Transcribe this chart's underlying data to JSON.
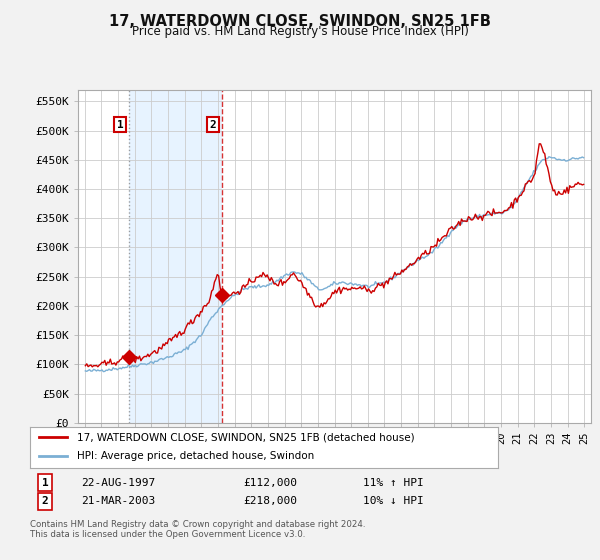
{
  "title": "17, WATERDOWN CLOSE, SWINDON, SN25 1FB",
  "subtitle": "Price paid vs. HM Land Registry's House Price Index (HPI)",
  "ylim": [
    0,
    570000
  ],
  "yticks": [
    0,
    50000,
    100000,
    150000,
    200000,
    250000,
    300000,
    350000,
    400000,
    450000,
    500000,
    550000
  ],
  "ytick_labels": [
    "£0",
    "£50K",
    "£100K",
    "£150K",
    "£200K",
    "£250K",
    "£300K",
    "£350K",
    "£400K",
    "£450K",
    "£500K",
    "£550K"
  ],
  "hpi_color": "#7bafd4",
  "price_color": "#cc0000",
  "vline1_color": "#888888",
  "vline2_color": "#cc0000",
  "shade_color": "#ddeeff",
  "legend_label_price": "17, WATERDOWN CLOSE, SWINDON, SN25 1FB (detached house)",
  "legend_label_hpi": "HPI: Average price, detached house, Swindon",
  "sale1_date": "22-AUG-1997",
  "sale1_price": "£112,000",
  "sale1_hpi": "11% ↑ HPI",
  "sale2_date": "21-MAR-2003",
  "sale2_price": "£218,000",
  "sale2_hpi": "10% ↓ HPI",
  "sale1_year": 1997.64,
  "sale1_value": 112000,
  "sale2_year": 2003.22,
  "sale2_value": 218000,
  "footer": "Contains HM Land Registry data © Crown copyright and database right 2024.\nThis data is licensed under the Open Government Licence v3.0.",
  "background_color": "#f2f2f2",
  "plot_bg_color": "#ffffff",
  "grid_color": "#cccccc",
  "label1_box_color": "#cc0000",
  "label2_box_color": "#cc0000"
}
